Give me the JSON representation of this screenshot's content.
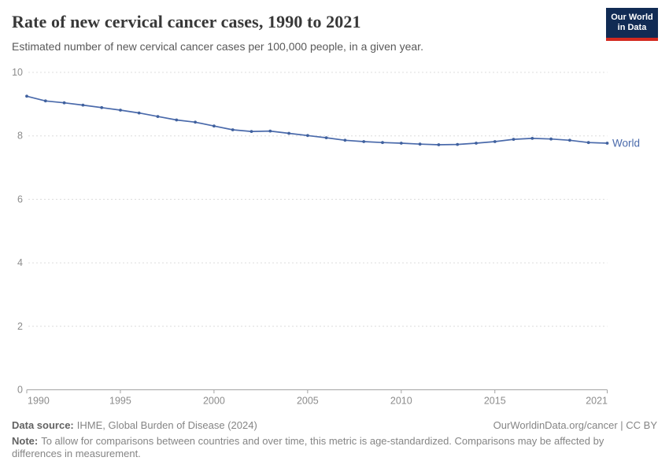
{
  "page": {
    "title": "Rate of new cervical cancer cases, 1990 to 2021",
    "subtitle": "Estimated number of new cervical cancer cases per 100,000 people, in a given year."
  },
  "logo": {
    "line1": "Our World",
    "line2": "in Data"
  },
  "chart_data": {
    "type": "line",
    "title": "Rate of new cervical cancer cases, 1990 to 2021",
    "xlabel": "",
    "ylabel": "",
    "x": [
      1990,
      1991,
      1992,
      1993,
      1994,
      1995,
      1996,
      1997,
      1998,
      1999,
      2000,
      2001,
      2002,
      2003,
      2004,
      2005,
      2006,
      2007,
      2008,
      2009,
      2010,
      2011,
      2012,
      2013,
      2014,
      2015,
      2016,
      2017,
      2018,
      2019,
      2020,
      2021
    ],
    "series": [
      {
        "name": "World",
        "color": "#4a6aab",
        "marker_color": "#40619e",
        "values": [
          9.25,
          9.1,
          9.04,
          8.97,
          8.89,
          8.81,
          8.72,
          8.61,
          8.5,
          8.43,
          8.31,
          8.19,
          8.14,
          8.15,
          8.08,
          8.01,
          7.94,
          7.86,
          7.82,
          7.79,
          7.77,
          7.74,
          7.72,
          7.73,
          7.77,
          7.82,
          7.89,
          7.92,
          7.9,
          7.86,
          7.79,
          7.77
        ]
      }
    ],
    "ylim": [
      0,
      10
    ],
    "yticks": [
      0,
      2,
      4,
      6,
      8,
      10
    ],
    "xticks": [
      1990,
      1995,
      2000,
      2005,
      2010,
      2015,
      2021
    ],
    "grid": true,
    "legend": "end-of-line-label"
  },
  "footer": {
    "source_label": "Data source:",
    "source_text": "IHME, Global Burden of Disease (2024)",
    "license": "OurWorldinData.org/cancer | CC BY",
    "note_label": "Note:",
    "note_text": "To allow for comparisons between countries and over time, this metric is age-standardized. Comparisons may be affected by differences in measurement."
  },
  "colors": {
    "logo_navy": "#112b54",
    "logo_red": "#d3291f",
    "line_blue": "#4a6aab",
    "grid_gray": "#dcdcdc",
    "axis_gray": "#a3a3a3",
    "tick_label_gray": "#8c8c8c"
  }
}
